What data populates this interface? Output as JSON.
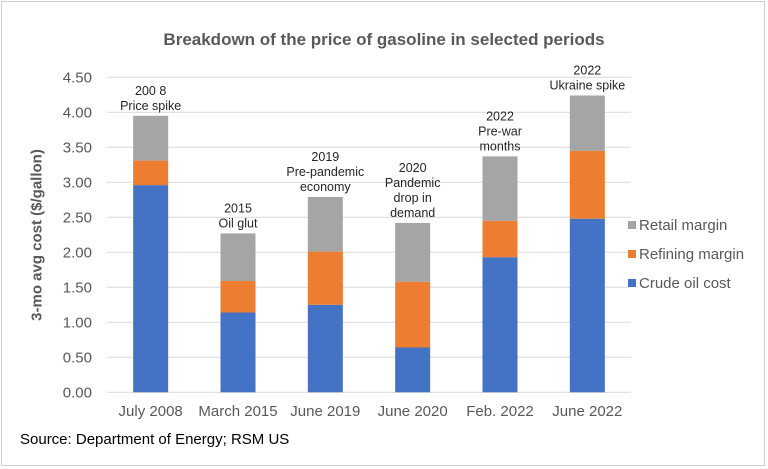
{
  "chart_data": {
    "type": "bar",
    "stacked": true,
    "title": "Breakdown of the price of gasoline in selected periods",
    "xlabel": "",
    "ylabel": "3-mo avg cost ($/gallon)",
    "ylim": [
      0,
      4.5
    ],
    "yticks": [
      "0.00",
      "0.50",
      "1.00",
      "1.50",
      "2.00",
      "2.50",
      "3.00",
      "3.50",
      "4.00",
      "4.50"
    ],
    "grid": true,
    "legend_position": "right",
    "categories": [
      "July 2008",
      "March 2015",
      "June 2019",
      "June 2020",
      "Feb. 2022",
      "June 2022"
    ],
    "annotations": [
      [
        "200 8",
        "Price spike"
      ],
      [
        "2015",
        "Oil glut"
      ],
      [
        "2019",
        "Pre-pandemic",
        "economy"
      ],
      [
        "2020",
        "Pandemic",
        "drop in",
        "demand"
      ],
      [
        "2022",
        "Pre-war",
        "months"
      ],
      [
        "2022",
        "Ukraine spike"
      ]
    ],
    "series": [
      {
        "name": "Crude oil cost",
        "color": "#4472C4",
        "values": [
          2.96,
          1.14,
          1.25,
          0.64,
          1.93,
          2.48
        ]
      },
      {
        "name": "Refining margin",
        "color": "#ED7D31",
        "values": [
          0.35,
          0.45,
          0.76,
          0.94,
          0.52,
          0.97
        ]
      },
      {
        "name": "Retail margin",
        "color": "#A5A5A5",
        "values": [
          0.64,
          0.68,
          0.78,
          0.84,
          0.92,
          0.79
        ]
      }
    ]
  },
  "source": "Source: Department of Energy; RSM US"
}
